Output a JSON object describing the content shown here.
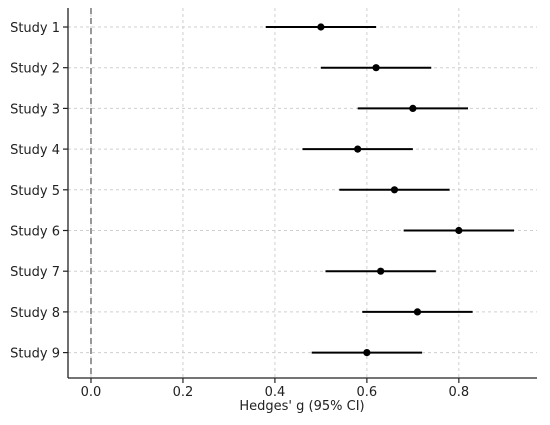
{
  "chart_data": {
    "type": "forest",
    "title": "",
    "xlabel": "Hedges' g (95% CI)",
    "ylabel": "",
    "xlim": [
      -0.05,
      0.97
    ],
    "xticks": [
      0.0,
      0.2,
      0.4,
      0.6,
      0.8
    ],
    "xtick_labels": [
      "0.0",
      "0.2",
      "0.4",
      "0.6",
      "0.8"
    ],
    "reference_line": 0.0,
    "grid": true,
    "colors": {
      "marker": "#000000",
      "ci": "#000000",
      "grid": "#cfcfcf",
      "reference": "#777777"
    },
    "studies": [
      {
        "label": "Study 1",
        "estimate": 0.5,
        "lower": 0.38,
        "upper": 0.62
      },
      {
        "label": "Study 2",
        "estimate": 0.62,
        "lower": 0.5,
        "upper": 0.74
      },
      {
        "label": "Study 3",
        "estimate": 0.7,
        "lower": 0.58,
        "upper": 0.82
      },
      {
        "label": "Study 4",
        "estimate": 0.58,
        "lower": 0.46,
        "upper": 0.7
      },
      {
        "label": "Study 5",
        "estimate": 0.66,
        "lower": 0.54,
        "upper": 0.78
      },
      {
        "label": "Study 6",
        "estimate": 0.8,
        "lower": 0.68,
        "upper": 0.92
      },
      {
        "label": "Study 7",
        "estimate": 0.63,
        "lower": 0.51,
        "upper": 0.75
      },
      {
        "label": "Study 8",
        "estimate": 0.71,
        "lower": 0.59,
        "upper": 0.83
      },
      {
        "label": "Study 9",
        "estimate": 0.6,
        "lower": 0.48,
        "upper": 0.72
      }
    ]
  }
}
